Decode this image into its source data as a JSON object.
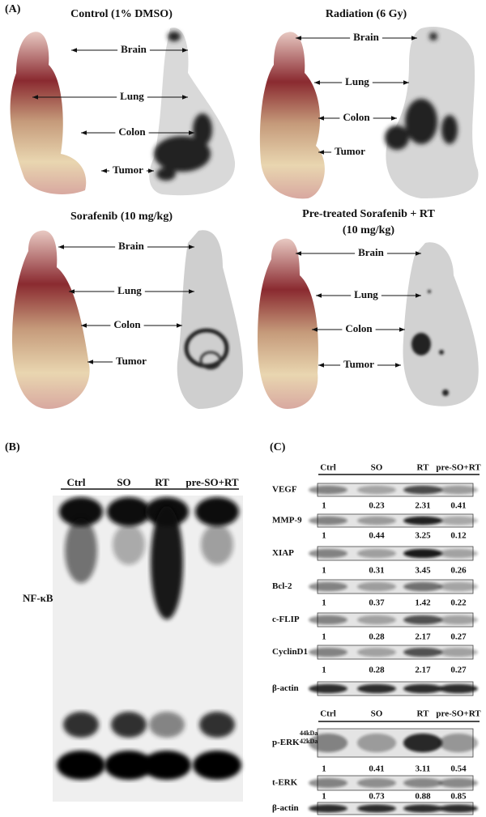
{
  "panel_a": {
    "label": "(A)",
    "groups": [
      {
        "title": "Control (1% DMSO)",
        "organs": [
          "Brain",
          "Lung",
          "Colon",
          "Tumor"
        ]
      },
      {
        "title": "Radiation (6 Gy)",
        "organs": [
          "Brain",
          "Lung",
          "Colon",
          "Tumor"
        ]
      },
      {
        "title": "Sorafenib (10 mg/kg)",
        "organs": [
          "Brain",
          "Lung",
          "Colon",
          "Tumor"
        ]
      },
      {
        "title": "Pre-treated Sorafenib + RT",
        "subtitle": "(10 mg/kg)",
        "organs": [
          "Brain",
          "Lung",
          "Colon",
          "Tumor"
        ]
      }
    ]
  },
  "panel_b": {
    "label": "(B)",
    "lanes": [
      "Ctrl",
      "SO",
      "RT",
      "pre-SO+RT"
    ],
    "band_label": "NF-κB"
  },
  "panel_c": {
    "label": "(C)",
    "blot_1": {
      "lanes": [
        "Ctrl",
        "SO",
        "RT",
        "pre-SO+RT"
      ],
      "rows": [
        {
          "name": "VEGF",
          "values": [
            1,
            0.23,
            2.31,
            0.41
          ]
        },
        {
          "name": "MMP-9",
          "values": [
            1,
            0.44,
            3.25,
            0.12
          ]
        },
        {
          "name": "XIAP",
          "values": [
            1,
            0.31,
            3.45,
            0.26
          ]
        },
        {
          "name": "Bcl-2",
          "values": [
            1,
            0.37,
            1.42,
            0.22
          ]
        },
        {
          "name": "c-FLIP",
          "values": [
            1,
            0.28,
            2.17,
            0.27
          ]
        },
        {
          "name": "CyclinD1",
          "values": [
            1,
            0.28,
            2.17,
            0.27
          ]
        },
        {
          "name": "β-actin"
        }
      ]
    },
    "blot_2": {
      "lanes": [
        "Ctrl",
        "SO",
        "RT",
        "pre-SO+RT"
      ],
      "rows": [
        {
          "name": "p-ERK",
          "markers": [
            "44kDa",
            "42kDa"
          ],
          "values": [
            1,
            0.41,
            3.11,
            0.54
          ]
        },
        {
          "name": "t-ERK",
          "values": [
            1,
            0.73,
            0.88,
            0.85
          ]
        },
        {
          "name": "β-actin"
        }
      ]
    }
  }
}
